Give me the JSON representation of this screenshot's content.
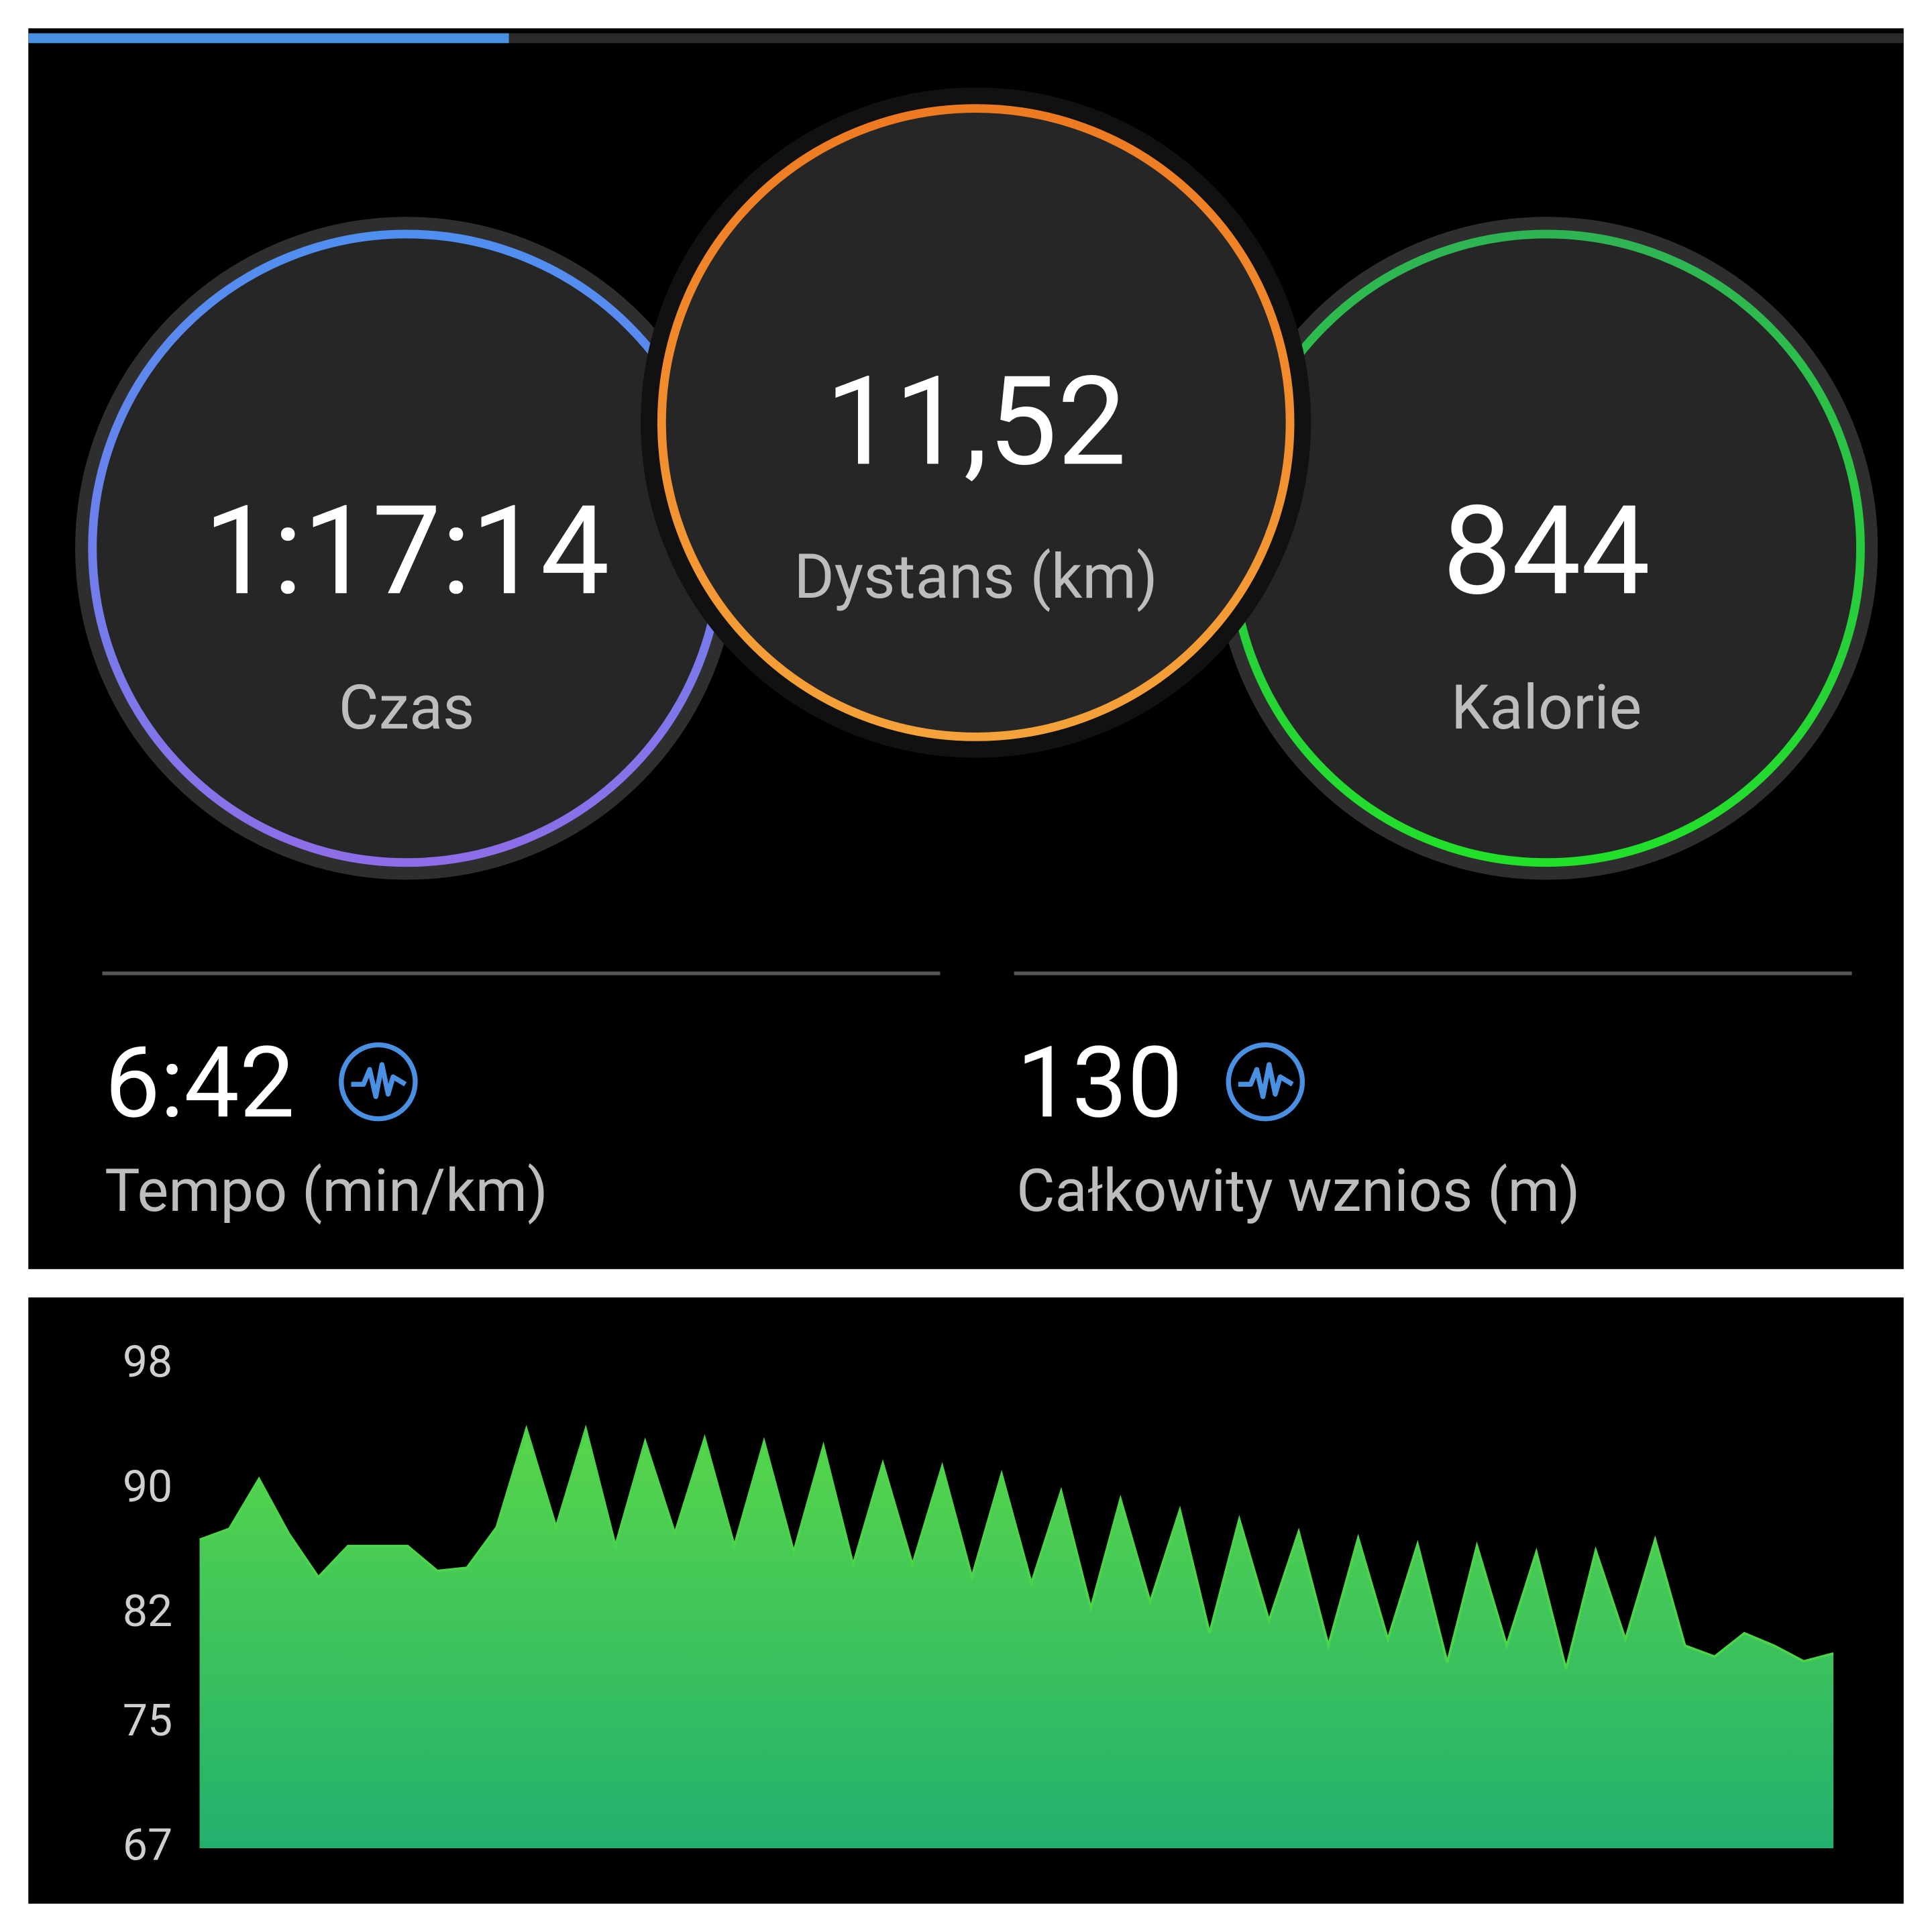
{
  "summary": [
    {
      "value": "1:17:14",
      "label": "Czas"
    },
    {
      "value": "11,52",
      "label": "Dystans (km)"
    },
    {
      "value": "844",
      "label": "Kalorie"
    }
  ],
  "metrics": [
    {
      "value": "6:42",
      "label": "Tempo (min/km)"
    },
    {
      "value": "130",
      "label": "Całkowity wznios (m)"
    }
  ],
  "chart_data": {
    "type": "area",
    "color": "#4cd44a",
    "values": [
      86.8,
      87.5,
      90.7,
      87.2,
      84.4,
      86.4,
      86.4,
      86.4,
      84.8,
      85.0,
      87.6,
      93.9,
      87.6,
      93.9,
      86.4,
      93.1,
      87.2,
      93.3,
      86.4,
      93.1,
      86.0,
      92.8,
      85.2,
      91.7,
      85.2,
      91.5,
      84.4,
      91.0,
      84.0,
      89.9,
      82.4,
      89.4,
      82.8,
      88.7,
      80.8,
      88.1,
      81.6,
      87.3,
      80.0,
      86.9,
      80.4,
      86.5,
      78.9,
      86.4,
      80.0,
      86.0,
      78.5,
      86.1,
      80.4,
      86.8,
      80.0,
      79.3,
      80.8,
      80.0,
      79.0,
      79.5
    ],
    "ylim": [
      67,
      98
    ],
    "yticks": [
      98,
      90,
      82,
      75,
      67
    ]
  }
}
